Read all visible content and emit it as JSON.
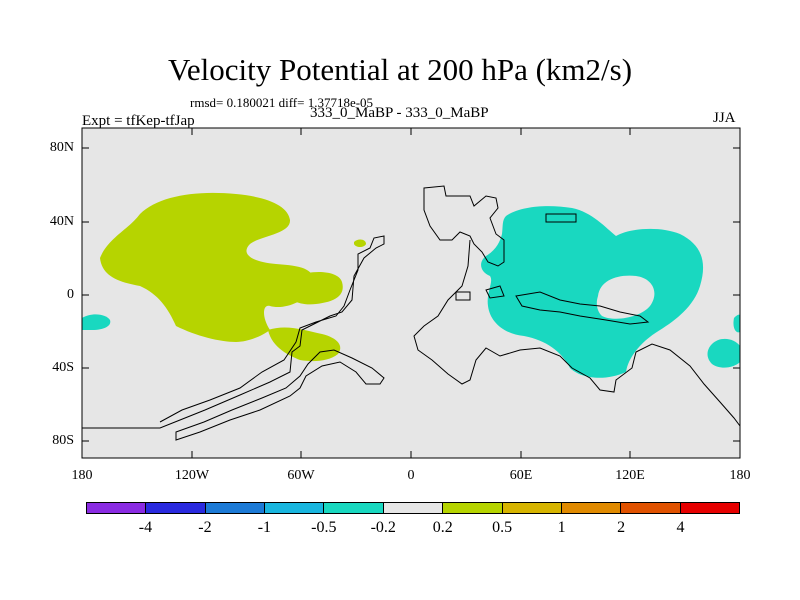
{
  "title": "Velocity Potential at 200 hPa (km2/s)",
  "stats": "rmsd= 0.180021 diff= 1.37718e-05",
  "experiment": "Expt = tfKep-tfJap",
  "runs": "333_0_MaBP - 333_0_MaBP",
  "season": "JJA",
  "lat_labels": [
    "80N",
    "40N",
    "0",
    "40S",
    "80S"
  ],
  "lon_labels": [
    "180",
    "120W",
    "60W",
    "0",
    "60E",
    "120E",
    "180"
  ],
  "colorbar": {
    "colors": [
      "#8a2be2",
      "#2a2adf",
      "#1c7ad6",
      "#19b6df",
      "#19d8c0",
      "#e6e6e6",
      "#b6d400",
      "#d6b400",
      "#e08a00",
      "#e05200",
      "#e60000"
    ],
    "labels": [
      "-4",
      "-2",
      "-1",
      "-0.5",
      "-0.2",
      "0.2",
      "0.5",
      "1",
      "2",
      "4"
    ]
  },
  "colors": {
    "background": "#e6e6e6",
    "positive_anomaly": "#b6d400",
    "negative_anomaly": "#19d8c0",
    "coastline": "#000000"
  }
}
